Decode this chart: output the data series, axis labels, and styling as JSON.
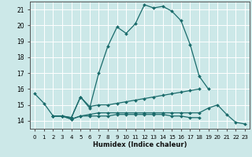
{
  "xlabel": "Humidex (Indice chaleur)",
  "bg_color": "#cce8e8",
  "grid_color": "#ffffff",
  "line_color": "#1a6b6b",
  "xlim": [
    -0.5,
    23.5
  ],
  "ylim": [
    13.5,
    21.5
  ],
  "xticks": [
    0,
    1,
    2,
    3,
    4,
    5,
    6,
    7,
    8,
    9,
    10,
    11,
    12,
    13,
    14,
    15,
    16,
    17,
    18,
    19,
    20,
    21,
    22,
    23
  ],
  "yticks": [
    14,
    15,
    16,
    17,
    18,
    19,
    20,
    21
  ],
  "series": [
    [
      15.7,
      15.1,
      14.3,
      14.3,
      14.2,
      15.5,
      14.8,
      17.0,
      18.7,
      19.9,
      19.5,
      20.1,
      21.3,
      21.1,
      21.2,
      20.9,
      20.3,
      18.8,
      16.8,
      16.0,
      null,
      null,
      null,
      null
    ],
    [
      null,
      null,
      14.3,
      14.3,
      14.2,
      15.5,
      14.9,
      15.0,
      15.0,
      15.1,
      15.2,
      15.3,
      15.4,
      15.5,
      15.6,
      15.7,
      15.8,
      15.9,
      16.0,
      null,
      null,
      null,
      null,
      null
    ],
    [
      null,
      null,
      14.3,
      14.3,
      14.1,
      14.3,
      14.4,
      14.5,
      14.5,
      14.5,
      14.5,
      14.5,
      14.5,
      14.5,
      14.5,
      14.5,
      14.5,
      14.5,
      14.5,
      14.8,
      15.0,
      14.4,
      13.9,
      13.8
    ],
    [
      null,
      null,
      14.3,
      14.3,
      14.1,
      14.3,
      14.3,
      14.3,
      14.3,
      14.4,
      14.4,
      14.4,
      14.4,
      14.4,
      14.4,
      14.3,
      14.3,
      14.2,
      14.2,
      null,
      null,
      null,
      null,
      null
    ]
  ]
}
